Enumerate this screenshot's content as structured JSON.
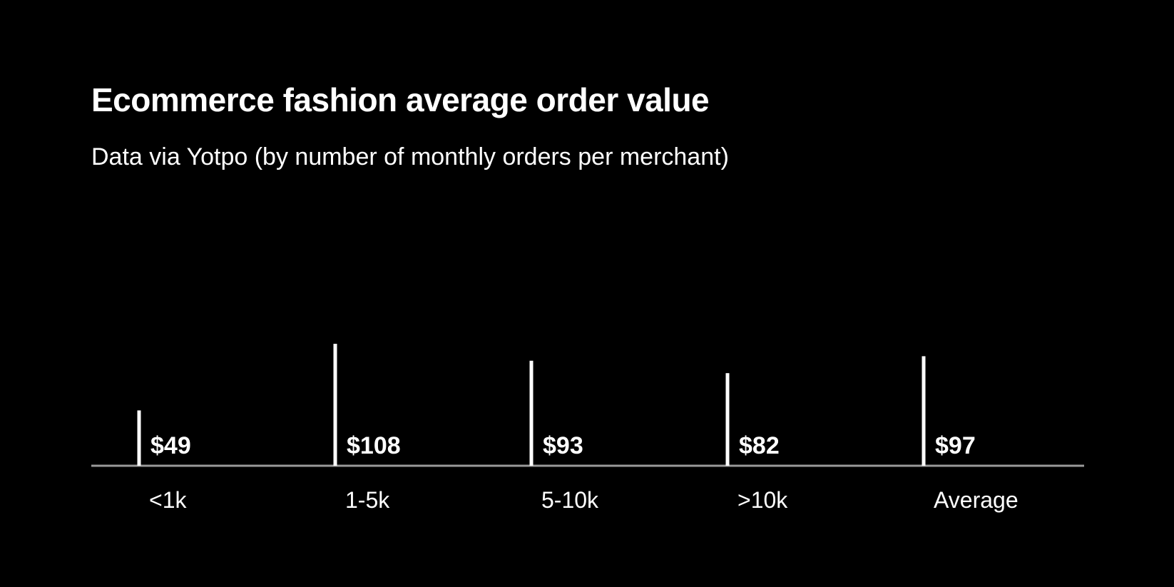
{
  "chart_data": {
    "type": "bar",
    "title": "Ecommerce fashion average order value",
    "subtitle": "Data via Yotpo (by number of monthly orders per merchant)",
    "categories": [
      "<1k",
      "1-5k",
      "5-10k",
      ">10k",
      "Average"
    ],
    "values": [
      49,
      108,
      93,
      82,
      97
    ],
    "value_labels": [
      "$49",
      "$108",
      "$93",
      "$82",
      "$97"
    ],
    "xlabel": "",
    "ylabel": "",
    "ylim": [
      0,
      108
    ],
    "grid": false,
    "legend": "none",
    "colors": {
      "background": "#000000",
      "bar": "#ffffff",
      "text": "#ffffff",
      "baseline": "#9a9a9a"
    }
  }
}
